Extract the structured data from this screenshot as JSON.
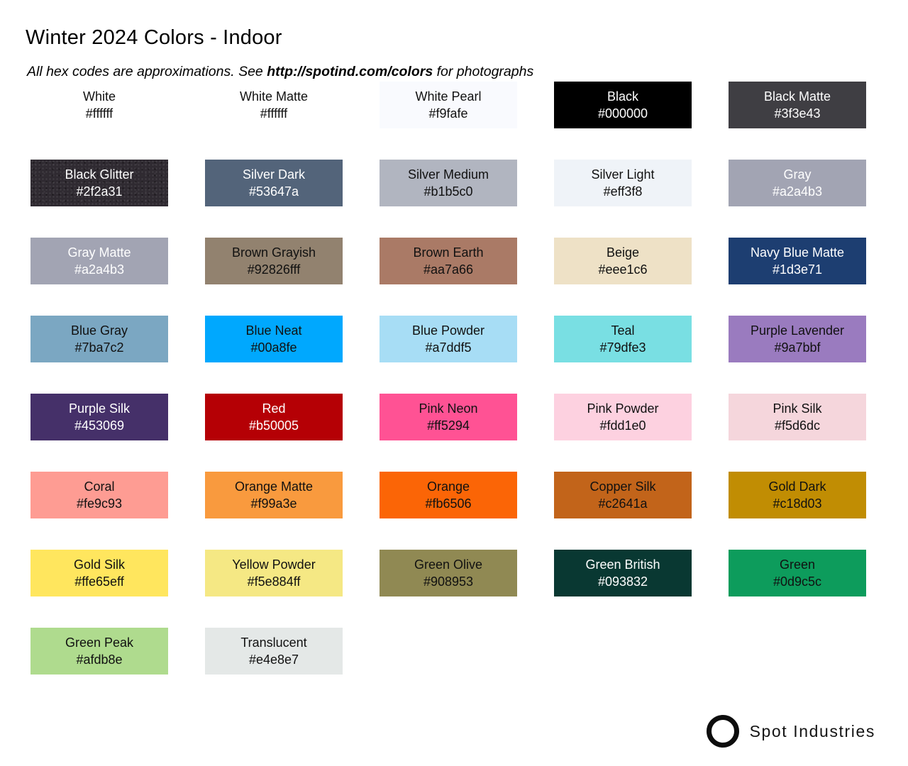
{
  "header": {
    "title": "Winter 2024 Colors - Indoor",
    "subtitle_prefix": "All hex codes are approximations. See ",
    "subtitle_link": "http://spotind.com/colors",
    "subtitle_suffix": " for photographs"
  },
  "styles": {
    "page_bg": "#ffffff",
    "dark_text": "#111111",
    "light_text": "#ffffff"
  },
  "swatches": [
    {
      "name": "White",
      "hex": "#ffffff",
      "text": "dark"
    },
    {
      "name": "White Matte",
      "hex": "#ffffff",
      "text": "dark"
    },
    {
      "name": "White Pearl",
      "hex": "#f9fafe",
      "text": "dark"
    },
    {
      "name": "Black",
      "hex": "#000000",
      "text": "light"
    },
    {
      "name": "Black Matte",
      "hex": "#3f3e43",
      "text": "light"
    },
    {
      "name": "Black Glitter",
      "hex": "#2f2a31",
      "text": "light",
      "texture": "glitter"
    },
    {
      "name": "Silver Dark",
      "hex": "#53647a",
      "text": "light"
    },
    {
      "name": "Silver Medium",
      "hex": "#b1b5c0",
      "text": "dark"
    },
    {
      "name": "Silver Light",
      "hex": "#eff3f8",
      "text": "dark"
    },
    {
      "name": "Gray",
      "hex": "#a2a4b3",
      "text": "light"
    },
    {
      "name": "Gray Matte",
      "hex": "#a2a4b3",
      "text": "light"
    },
    {
      "name": "Brown Grayish",
      "hex": "#92826fff",
      "text": "dark"
    },
    {
      "name": "Brown Earth",
      "hex": "#aa7a66",
      "text": "dark"
    },
    {
      "name": "Beige",
      "hex": "#eee1c6",
      "text": "dark"
    },
    {
      "name": "Navy Blue Matte",
      "hex": "#1d3e71",
      "text": "light"
    },
    {
      "name": "Blue Gray",
      "hex": "#7ba7c2",
      "text": "dark"
    },
    {
      "name": "Blue Neat",
      "hex": "#00a8fe",
      "text": "dark"
    },
    {
      "name": "Blue Powder",
      "hex": "#a7ddf5",
      "text": "dark"
    },
    {
      "name": "Teal",
      "hex": "#79dfe3",
      "text": "dark"
    },
    {
      "name": "Purple Lavender",
      "hex": "#9a7bbf",
      "text": "dark"
    },
    {
      "name": "Purple Silk",
      "hex": "#453069",
      "text": "light"
    },
    {
      "name": "Red",
      "hex": "#b50005",
      "text": "light"
    },
    {
      "name": "Pink Neon",
      "hex": "#ff5294",
      "text": "dark"
    },
    {
      "name": "Pink Powder",
      "hex": "#fdd1e0",
      "text": "dark"
    },
    {
      "name": "Pink Silk",
      "hex": "#f5d6dc",
      "text": "dark"
    },
    {
      "name": "Coral",
      "hex": "#fe9c93",
      "text": "dark"
    },
    {
      "name": "Orange Matte",
      "hex": "#f99a3e",
      "text": "dark"
    },
    {
      "name": "Orange",
      "hex": "#fb6506",
      "text": "dark"
    },
    {
      "name": "Copper Silk",
      "hex": "#c2641a",
      "text": "dark"
    },
    {
      "name": "Gold Dark",
      "hex": "#c18d03",
      "text": "dark"
    },
    {
      "name": "Gold Silk",
      "hex": "#ffe65eff",
      "text": "dark"
    },
    {
      "name": "Yellow Powder",
      "hex": "#f5e884ff",
      "text": "dark"
    },
    {
      "name": "Green Olive",
      "hex": "#908953",
      "text": "dark"
    },
    {
      "name": "Green British",
      "hex": "#093832",
      "text": "light"
    },
    {
      "name": "Green",
      "hex": "#0d9c5c",
      "text": "dark"
    },
    {
      "name": "Green Peak",
      "hex": "#afdb8e",
      "text": "dark"
    },
    {
      "name": "Translucent",
      "hex": "#e4e8e7",
      "text": "dark"
    }
  ],
  "footer": {
    "brand": "Spot Industries",
    "logo_icon": "circle-ring-icon"
  }
}
